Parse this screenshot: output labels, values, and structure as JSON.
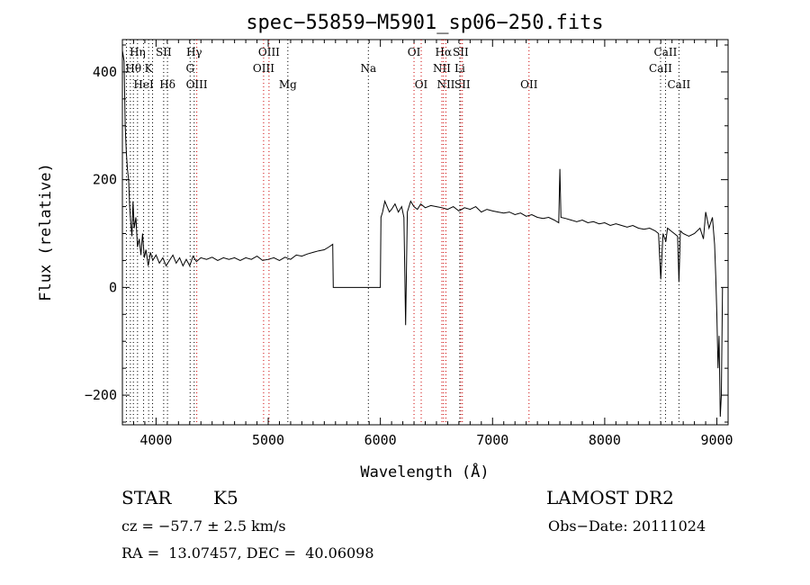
{
  "chart_data": {
    "type": "line",
    "title": "spec−55859−M5901_sp06−250.fits",
    "xlabel": "Wavelength (Å)",
    "ylabel": "Flux (relative)",
    "xlim": [
      3700,
      9100
    ],
    "ylim": [
      -255,
      460
    ],
    "xticks": [
      4000,
      5000,
      6000,
      7000,
      8000,
      9000
    ],
    "yticks": [
      -200,
      0,
      200,
      400
    ],
    "ytick_labels": [
      "−200",
      "0",
      "200",
      "400"
    ],
    "grid": false,
    "legend": "none",
    "series": [
      {
        "color": "#000000",
        "points": [
          [
            3700,
            440
          ],
          [
            3715,
            420
          ],
          [
            3725,
            300
          ],
          [
            3735,
            250
          ],
          [
            3745,
            220
          ],
          [
            3755,
            200
          ],
          [
            3765,
            150
          ],
          [
            3775,
            120
          ],
          [
            3785,
            95
          ],
          [
            3795,
            160
          ],
          [
            3805,
            110
          ],
          [
            3820,
            130
          ],
          [
            3835,
            75
          ],
          [
            3850,
            90
          ],
          [
            3865,
            60
          ],
          [
            3880,
            100
          ],
          [
            3895,
            55
          ],
          [
            3910,
            70
          ],
          [
            3930,
            40
          ],
          [
            3950,
            65
          ],
          [
            3970,
            50
          ],
          [
            4000,
            60
          ],
          [
            4030,
            45
          ],
          [
            4060,
            55
          ],
          [
            4090,
            40
          ],
          [
            4120,
            50
          ],
          [
            4150,
            60
          ],
          [
            4180,
            45
          ],
          [
            4210,
            55
          ],
          [
            4240,
            40
          ],
          [
            4270,
            52
          ],
          [
            4300,
            40
          ],
          [
            4330,
            58
          ],
          [
            4360,
            48
          ],
          [
            4400,
            55
          ],
          [
            4450,
            52
          ],
          [
            4500,
            56
          ],
          [
            4550,
            50
          ],
          [
            4600,
            55
          ],
          [
            4650,
            52
          ],
          [
            4700,
            55
          ],
          [
            4750,
            50
          ],
          [
            4800,
            55
          ],
          [
            4850,
            52
          ],
          [
            4900,
            58
          ],
          [
            4950,
            50
          ],
          [
            5000,
            52
          ],
          [
            5050,
            55
          ],
          [
            5100,
            50
          ],
          [
            5150,
            56
          ],
          [
            5200,
            52
          ],
          [
            5250,
            60
          ],
          [
            5300,
            58
          ],
          [
            5350,
            62
          ],
          [
            5400,
            65
          ],
          [
            5450,
            68
          ],
          [
            5500,
            70
          ],
          [
            5540,
            75
          ],
          [
            5575,
            80
          ],
          [
            5580,
            0
          ],
          [
            6000,
            0
          ],
          [
            6005,
            130
          ],
          [
            6020,
            140
          ],
          [
            6040,
            160
          ],
          [
            6060,
            150
          ],
          [
            6080,
            140
          ],
          [
            6100,
            145
          ],
          [
            6130,
            155
          ],
          [
            6160,
            140
          ],
          [
            6190,
            150
          ],
          [
            6210,
            130
          ],
          [
            6225,
            -70
          ],
          [
            6240,
            140
          ],
          [
            6270,
            160
          ],
          [
            6300,
            150
          ],
          [
            6330,
            145
          ],
          [
            6360,
            155
          ],
          [
            6400,
            148
          ],
          [
            6450,
            152
          ],
          [
            6500,
            150
          ],
          [
            6550,
            148
          ],
          [
            6600,
            145
          ],
          [
            6650,
            150
          ],
          [
            6700,
            142
          ],
          [
            6750,
            148
          ],
          [
            6800,
            145
          ],
          [
            6850,
            150
          ],
          [
            6900,
            140
          ],
          [
            6950,
            145
          ],
          [
            7000,
            142
          ],
          [
            7050,
            140
          ],
          [
            7100,
            138
          ],
          [
            7150,
            140
          ],
          [
            7200,
            135
          ],
          [
            7250,
            138
          ],
          [
            7300,
            132
          ],
          [
            7350,
            135
          ],
          [
            7400,
            130
          ],
          [
            7450,
            128
          ],
          [
            7500,
            130
          ],
          [
            7550,
            125
          ],
          [
            7590,
            120
          ],
          [
            7600,
            220
          ],
          [
            7610,
            130
          ],
          [
            7650,
            128
          ],
          [
            7700,
            125
          ],
          [
            7750,
            122
          ],
          [
            7800,
            125
          ],
          [
            7850,
            120
          ],
          [
            7900,
            122
          ],
          [
            7950,
            118
          ],
          [
            8000,
            120
          ],
          [
            8050,
            115
          ],
          [
            8100,
            118
          ],
          [
            8150,
            115
          ],
          [
            8200,
            112
          ],
          [
            8250,
            115
          ],
          [
            8300,
            110
          ],
          [
            8350,
            108
          ],
          [
            8400,
            110
          ],
          [
            8450,
            105
          ],
          [
            8480,
            100
          ],
          [
            8500,
            15
          ],
          [
            8520,
            100
          ],
          [
            8545,
            85
          ],
          [
            8560,
            110
          ],
          [
            8590,
            105
          ],
          [
            8620,
            100
          ],
          [
            8650,
            95
          ],
          [
            8662,
            10
          ],
          [
            8675,
            105
          ],
          [
            8700,
            100
          ],
          [
            8750,
            95
          ],
          [
            8800,
            100
          ],
          [
            8850,
            110
          ],
          [
            8880,
            90
          ],
          [
            8900,
            140
          ],
          [
            8930,
            110
          ],
          [
            8960,
            130
          ],
          [
            8980,
            80
          ],
          [
            8990,
            20
          ],
          [
            9000,
            -50
          ],
          [
            9010,
            -150
          ],
          [
            9020,
            -90
          ],
          [
            9030,
            -240
          ],
          [
            9040,
            -200
          ],
          [
            9050,
            0
          ]
        ]
      }
    ],
    "line_labels": [
      {
        "label": "Hη",
        "wl": 3835,
        "row": 0,
        "color": "#000000"
      },
      {
        "label": "Hθ",
        "wl": 3798,
        "row": 1,
        "color": "#000000"
      },
      {
        "label": "HeI",
        "wl": 3889,
        "row": 2,
        "color": "#000000"
      },
      {
        "label": "K",
        "wl": 3934,
        "row": 1,
        "color": "#000000"
      },
      {
        "label": "SII",
        "wl": 4068,
        "row": 0,
        "color": "#000000"
      },
      {
        "label": "Hδ",
        "wl": 4102,
        "row": 2,
        "color": "#000000"
      },
      {
        "label": "Hγ",
        "wl": 4340,
        "row": 0,
        "color": "#000000"
      },
      {
        "label": "G",
        "wl": 4304,
        "row": 1,
        "color": "#000000"
      },
      {
        "label": "OIII",
        "wl": 4363,
        "row": 2,
        "color": "#000000"
      },
      {
        "label": "OIII",
        "wl": 5007,
        "row": 0,
        "color": "#000000"
      },
      {
        "label": "OIII",
        "wl": 4959,
        "row": 1,
        "color": "#000000"
      },
      {
        "label": "Mg",
        "wl": 5175,
        "row": 2,
        "color": "#000000"
      },
      {
        "label": "Na",
        "wl": 5893,
        "row": 1,
        "color": "#000000"
      },
      {
        "label": "OI",
        "wl": 6300,
        "row": 0,
        "color": "#000000"
      },
      {
        "label": "OI",
        "wl": 6364,
        "row": 2,
        "color": "#000000"
      },
      {
        "label": "Hα",
        "wl": 6563,
        "row": 0,
        "color": "#000000"
      },
      {
        "label": "NII",
        "wl": 6548,
        "row": 1,
        "color": "#000000"
      },
      {
        "label": "NII",
        "wl": 6584,
        "row": 2,
        "color": "#000000"
      },
      {
        "label": "SII",
        "wl": 6716,
        "row": 0,
        "color": "#000000"
      },
      {
        "label": "Li",
        "wl": 6708,
        "row": 1,
        "color": "#000000"
      },
      {
        "label": "SII",
        "wl": 6731,
        "row": 2,
        "color": "#000000"
      },
      {
        "label": "OII",
        "wl": 7325,
        "row": 2,
        "color": "#000000"
      },
      {
        "label": "CaII",
        "wl": 8542,
        "row": 0,
        "color": "#000000"
      },
      {
        "label": "CaII",
        "wl": 8498,
        "row": 1,
        "color": "#000000"
      },
      {
        "label": "CaII",
        "wl": 8662,
        "row": 2,
        "color": "#000000"
      }
    ],
    "marker_lines": [
      {
        "wl": 3736,
        "color": "#000000"
      },
      {
        "wl": 3771,
        "color": "#000000"
      },
      {
        "wl": 3798,
        "color": "#000000"
      },
      {
        "wl": 3835,
        "color": "#000000"
      },
      {
        "wl": 3889,
        "color": "#000000"
      },
      {
        "wl": 3934,
        "color": "#000000"
      },
      {
        "wl": 3969,
        "color": "#000000"
      },
      {
        "wl": 4068,
        "color": "#000000"
      },
      {
        "wl": 4102,
        "color": "#000000"
      },
      {
        "wl": 4304,
        "color": "#000000"
      },
      {
        "wl": 4340,
        "color": "#000000"
      },
      {
        "wl": 4363,
        "color": "#cc0000"
      },
      {
        "wl": 4959,
        "color": "#cc0000"
      },
      {
        "wl": 5007,
        "color": "#cc0000"
      },
      {
        "wl": 5175,
        "color": "#000000"
      },
      {
        "wl": 5893,
        "color": "#000000"
      },
      {
        "wl": 6300,
        "color": "#cc0000"
      },
      {
        "wl": 6364,
        "color": "#cc0000"
      },
      {
        "wl": 6548,
        "color": "#cc0000"
      },
      {
        "wl": 6563,
        "color": "#cc0000"
      },
      {
        "wl": 6584,
        "color": "#cc0000"
      },
      {
        "wl": 6708,
        "color": "#000000"
      },
      {
        "wl": 6716,
        "color": "#cc0000"
      },
      {
        "wl": 6731,
        "color": "#cc0000"
      },
      {
        "wl": 7325,
        "color": "#cc0000"
      },
      {
        "wl": 8498,
        "color": "#000000"
      },
      {
        "wl": 8542,
        "color": "#000000"
      },
      {
        "wl": 8662,
        "color": "#000000"
      }
    ]
  },
  "info": {
    "class": "STAR",
    "subclass": "K5",
    "survey": "LAMOST DR2",
    "cz": "cz = −57.7 ± 2.5 km/s",
    "obs_date": "Obs−Date: 20111024",
    "radec": "RA =  13.07457, DEC =  40.06098"
  }
}
